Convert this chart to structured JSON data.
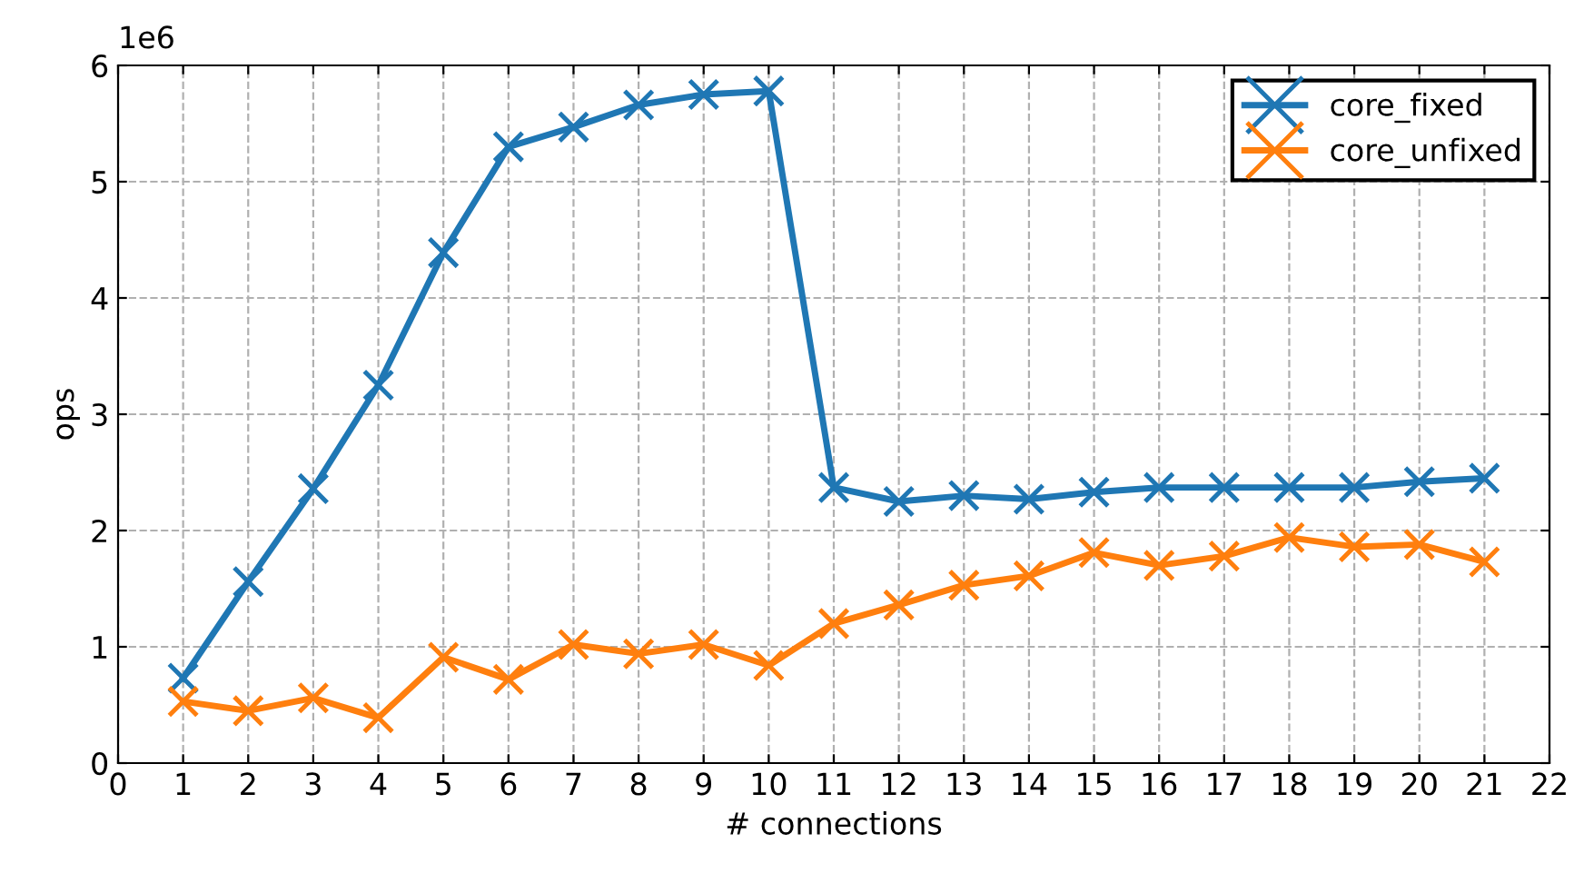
{
  "chart_data": {
    "type": "line",
    "xlabel": "# connections",
    "ylabel": "ops",
    "annotations": [
      "1e6"
    ],
    "x": [
      1,
      2,
      3,
      4,
      5,
      6,
      7,
      8,
      9,
      10,
      11,
      12,
      13,
      14,
      15,
      16,
      17,
      18,
      19,
      20,
      21
    ],
    "series": [
      {
        "name": "core_fixed",
        "color": "#1f77b4",
        "values": [
          0.73,
          1.56,
          2.36,
          3.25,
          4.39,
          5.3,
          5.47,
          5.66,
          5.75,
          5.78,
          2.37,
          2.25,
          2.3,
          2.27,
          2.33,
          2.37,
          2.37,
          2.37,
          2.37,
          2.42,
          2.45
        ]
      },
      {
        "name": "core_unfixed",
        "color": "#ff7f0e",
        "values": [
          0.53,
          0.45,
          0.56,
          0.39,
          0.91,
          0.72,
          1.02,
          0.94,
          1.02,
          0.84,
          1.2,
          1.36,
          1.53,
          1.61,
          1.81,
          1.7,
          1.78,
          1.94,
          1.86,
          1.88,
          1.73
        ]
      }
    ],
    "xlim": [
      0,
      22
    ],
    "xticks": [
      0,
      1,
      2,
      3,
      4,
      5,
      6,
      7,
      8,
      9,
      10,
      11,
      12,
      13,
      14,
      15,
      16,
      17,
      18,
      19,
      20,
      21,
      22
    ],
    "ylim": [
      0,
      6
    ],
    "yticks": [
      0,
      1,
      2,
      3,
      4,
      5,
      6
    ],
    "grid": true,
    "legend": "top right",
    "marker": "cross",
    "line_style": "solid"
  }
}
